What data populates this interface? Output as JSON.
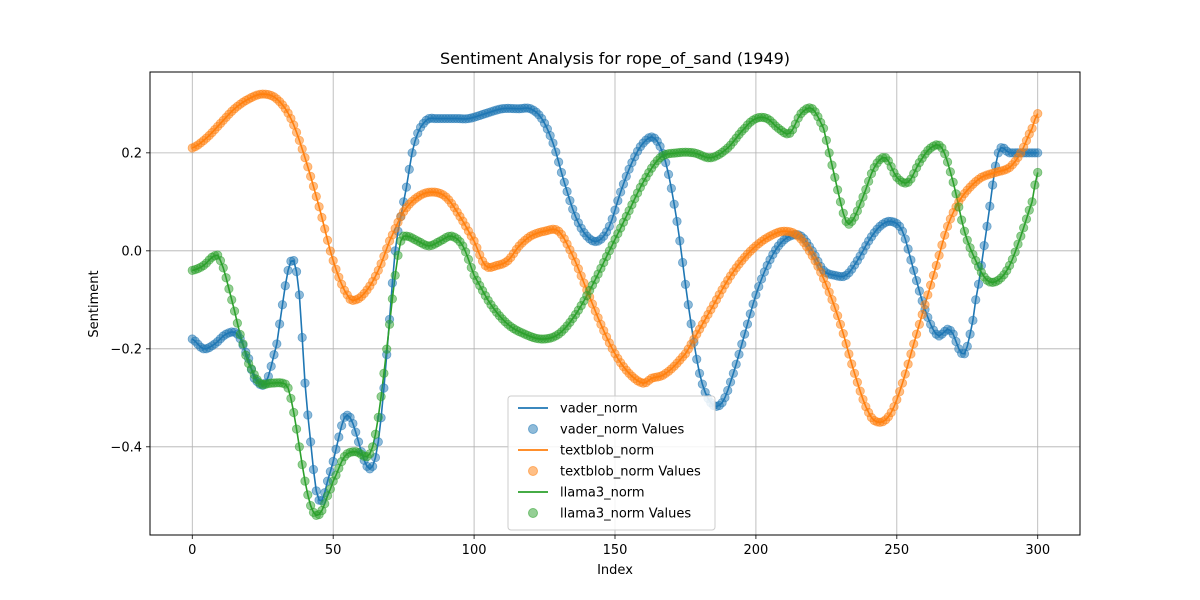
{
  "chart_data": {
    "type": "line",
    "title": "Sentiment Analysis for rope_of_sand (1949)",
    "xlabel": "Index",
    "ylabel": "Sentiment",
    "xlim": [
      -15,
      315
    ],
    "ylim": [
      -0.58,
      0.365
    ],
    "xticks": [
      0,
      50,
      100,
      150,
      200,
      250,
      300
    ],
    "yticks": [
      -0.4,
      -0.2,
      0.0,
      0.2
    ],
    "ytick_labels": [
      "−0.4",
      "−0.2",
      "0.0",
      "0.2"
    ],
    "grid": true,
    "legend_position": "lower-center",
    "legend": [
      {
        "label": "vader_norm",
        "kind": "line",
        "series": 0
      },
      {
        "label": "vader_norm Values",
        "kind": "marker",
        "series": 0
      },
      {
        "label": "textblob_norm",
        "kind": "line",
        "series": 1
      },
      {
        "label": "textblob_norm Values",
        "kind": "marker",
        "series": 1
      },
      {
        "label": "llama3_norm",
        "kind": "line",
        "series": 2
      },
      {
        "label": "llama3_norm Values",
        "kind": "marker",
        "series": 2
      }
    ],
    "series": [
      {
        "name": "vader_norm",
        "color": "#1f77b4",
        "x": [
          0,
          4,
          8,
          12,
          16,
          20,
          22,
          26,
          30,
          32,
          34,
          36,
          38,
          40,
          42,
          44,
          46,
          48,
          50,
          52,
          54,
          56,
          58,
          60,
          62,
          64,
          66,
          68,
          70,
          72,
          74,
          76,
          78,
          80,
          82,
          84,
          86,
          88,
          90,
          94,
          98,
          104,
          110,
          116,
          120,
          124,
          128,
          132,
          136,
          140,
          144,
          148,
          152,
          156,
          160,
          164,
          168,
          172,
          176,
          180,
          184,
          188,
          192,
          196,
          200,
          204,
          208,
          212,
          216,
          220,
          224,
          228,
          232,
          236,
          240,
          244,
          248,
          252,
          256,
          260,
          264,
          266,
          268,
          270,
          272,
          274,
          276,
          278,
          282,
          286,
          290,
          292,
          294,
          296,
          298,
          300
        ],
        "y": [
          -0.18,
          -0.2,
          -0.19,
          -0.17,
          -0.17,
          -0.22,
          -0.26,
          -0.27,
          -0.19,
          -0.11,
          -0.04,
          -0.02,
          -0.09,
          -0.27,
          -0.39,
          -0.49,
          -0.51,
          -0.47,
          -0.43,
          -0.38,
          -0.34,
          -0.34,
          -0.37,
          -0.41,
          -0.44,
          -0.44,
          -0.39,
          -0.28,
          -0.14,
          0.0,
          0.07,
          0.13,
          0.2,
          0.24,
          0.26,
          0.27,
          0.27,
          0.27,
          0.27,
          0.27,
          0.27,
          0.28,
          0.29,
          0.29,
          0.29,
          0.27,
          0.22,
          0.14,
          0.07,
          0.03,
          0.02,
          0.05,
          0.12,
          0.18,
          0.22,
          0.23,
          0.18,
          0.06,
          -0.11,
          -0.25,
          -0.31,
          -0.31,
          -0.25,
          -0.17,
          -0.09,
          -0.03,
          0.01,
          0.03,
          0.03,
          0.0,
          -0.04,
          -0.05,
          -0.05,
          -0.02,
          0.02,
          0.05,
          0.06,
          0.04,
          -0.04,
          -0.12,
          -0.17,
          -0.17,
          -0.16,
          -0.17,
          -0.2,
          -0.21,
          -0.17,
          -0.1,
          0.05,
          0.2,
          0.2,
          0.2,
          0.2,
          0.2,
          0.2,
          0.2
        ]
      },
      {
        "name": "textblob_norm",
        "color": "#ff7f0e",
        "x": [
          0,
          5,
          10,
          15,
          20,
          25,
          30,
          35,
          40,
          45,
          50,
          55,
          58,
          62,
          66,
          70,
          75,
          80,
          85,
          90,
          95,
          100,
          104,
          108,
          112,
          116,
          120,
          125,
          130,
          135,
          140,
          145,
          150,
          155,
          160,
          163,
          168,
          175,
          180,
          185,
          190,
          195,
          200,
          205,
          210,
          215,
          220,
          225,
          230,
          235,
          240,
          244,
          248,
          252,
          256,
          260,
          264,
          268,
          272,
          276,
          280,
          285,
          290,
          294,
          298,
          300
        ],
        "y": [
          0.21,
          0.23,
          0.26,
          0.29,
          0.31,
          0.32,
          0.31,
          0.27,
          0.19,
          0.09,
          -0.02,
          -0.09,
          -0.1,
          -0.08,
          -0.04,
          0.02,
          0.08,
          0.11,
          0.12,
          0.11,
          0.07,
          0.02,
          -0.03,
          -0.03,
          -0.02,
          0.01,
          0.03,
          0.04,
          0.04,
          -0.01,
          -0.08,
          -0.15,
          -0.21,
          -0.25,
          -0.27,
          -0.26,
          -0.25,
          -0.21,
          -0.16,
          -0.11,
          -0.06,
          -0.02,
          0.01,
          0.03,
          0.04,
          0.03,
          -0.01,
          -0.07,
          -0.15,
          -0.25,
          -0.33,
          -0.35,
          -0.33,
          -0.27,
          -0.19,
          -0.11,
          -0.03,
          0.05,
          0.1,
          0.13,
          0.15,
          0.16,
          0.17,
          0.2,
          0.25,
          0.28
        ]
      },
      {
        "name": "llama3_norm",
        "color": "#2ca02c",
        "x": [
          0,
          4,
          8,
          10,
          14,
          18,
          20,
          24,
          28,
          32,
          34,
          36,
          38,
          40,
          42,
          44,
          46,
          48,
          50,
          54,
          58,
          62,
          64,
          66,
          68,
          70,
          72,
          74,
          76,
          80,
          84,
          88,
          92,
          96,
          100,
          106,
          112,
          118,
          124,
          130,
          136,
          142,
          148,
          154,
          160,
          166,
          172,
          178,
          184,
          190,
          196,
          200,
          204,
          208,
          212,
          216,
          220,
          224,
          226,
          228,
          230,
          232,
          234,
          238,
          242,
          246,
          250,
          254,
          258,
          262,
          266,
          270,
          274,
          278,
          282,
          286,
          290,
          294,
          298,
          300
        ],
        "y": [
          -0.04,
          -0.03,
          -0.01,
          -0.02,
          -0.1,
          -0.19,
          -0.23,
          -0.27,
          -0.27,
          -0.27,
          -0.28,
          -0.33,
          -0.4,
          -0.47,
          -0.52,
          -0.54,
          -0.53,
          -0.5,
          -0.47,
          -0.42,
          -0.41,
          -0.42,
          -0.4,
          -0.34,
          -0.25,
          -0.15,
          -0.05,
          0.02,
          0.03,
          0.02,
          0.01,
          0.02,
          0.03,
          0.01,
          -0.05,
          -0.11,
          -0.15,
          -0.17,
          -0.18,
          -0.17,
          -0.13,
          -0.07,
          0.0,
          0.07,
          0.14,
          0.19,
          0.2,
          0.2,
          0.19,
          0.21,
          0.25,
          0.27,
          0.27,
          0.25,
          0.24,
          0.28,
          0.29,
          0.25,
          0.2,
          0.15,
          0.1,
          0.06,
          0.06,
          0.11,
          0.17,
          0.19,
          0.15,
          0.14,
          0.18,
          0.21,
          0.21,
          0.14,
          0.04,
          -0.02,
          -0.06,
          -0.06,
          -0.03,
          0.03,
          0.1,
          0.16
        ]
      }
    ]
  }
}
